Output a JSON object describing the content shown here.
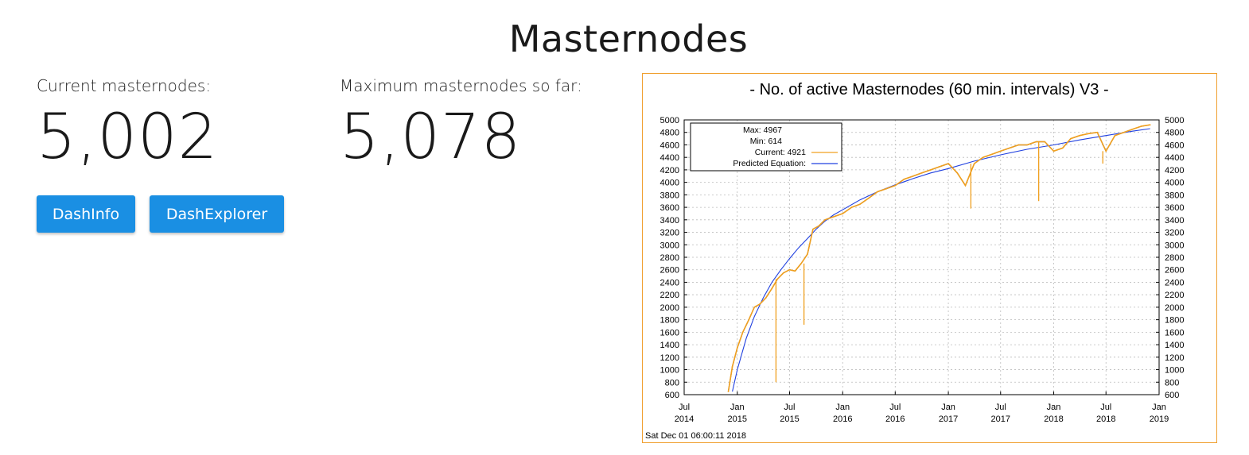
{
  "page": {
    "title": "Masternodes"
  },
  "stats": {
    "current": {
      "label": "Current masternodes:",
      "value": "5,002"
    },
    "maximum": {
      "label": "Maximum masternodes so far:",
      "value": "5,078"
    }
  },
  "buttons": {
    "dashinfo": "DashInfo",
    "dashexplorer": "DashExplorer"
  },
  "colors": {
    "accent": "#1a8fe3",
    "frame": "#f0a030",
    "actual": "#f0a020",
    "predicted": "#2040e0",
    "gap_line": "#000000"
  },
  "chart_data": {
    "type": "line",
    "title": "- No. of active Masternodes (60 min. intervals) V3 -",
    "timestamp": "Sat Dec 01 06:00:11 2018",
    "ylim": [
      600,
      5000
    ],
    "y_ticks": [
      600,
      800,
      1000,
      1200,
      1400,
      1600,
      1800,
      2000,
      2200,
      2400,
      2600,
      2800,
      3000,
      3200,
      3400,
      3600,
      3800,
      4000,
      4200,
      4400,
      4600,
      4800,
      5000
    ],
    "x_ticks": [
      {
        "top": "Jul",
        "bottom": "2014"
      },
      {
        "top": "Jan",
        "bottom": "2015"
      },
      {
        "top": "Jul",
        "bottom": "2015"
      },
      {
        "top": "Jan",
        "bottom": "2016"
      },
      {
        "top": "Jul",
        "bottom": "2016"
      },
      {
        "top": "Jan",
        "bottom": "2017"
      },
      {
        "top": "Jul",
        "bottom": "2017"
      },
      {
        "top": "Jan",
        "bottom": "2018"
      },
      {
        "top": "Jul",
        "bottom": "2018"
      },
      {
        "top": "Jan",
        "bottom": "2019"
      }
    ],
    "grid": true,
    "legend_placement": "top-left",
    "legend": [
      {
        "label": "Max: 4967"
      },
      {
        "label": "Min: 614"
      },
      {
        "label": "Current: 4921",
        "color": "#f0a020"
      },
      {
        "label": "Predicted Equation:",
        "color": "#2040e0"
      }
    ],
    "series": [
      {
        "x": [
          "2014-12-01",
          "2014-12-15",
          "2015-01-01",
          "2015-01-20",
          "2015-02-10",
          "2015-03-01",
          "2015-03-20",
          "2015-04-10",
          "2015-05-01",
          "2015-05-20",
          "2015-06-10",
          "2015-07-01",
          "2015-07-20",
          "2015-08-10",
          "2015-09-01",
          "2015-09-20",
          "2015-10-10",
          "2015-11-01",
          "2015-12-01",
          "2016-01-01",
          "2016-02-01",
          "2016-03-01",
          "2016-04-01",
          "2016-05-01",
          "2016-06-01",
          "2016-07-01",
          "2016-08-01",
          "2016-09-01",
          "2016-10-01",
          "2016-11-01",
          "2016-12-01",
          "2017-01-01",
          "2017-02-01",
          "2017-03-01",
          "2017-04-01",
          "2017-05-01",
          "2017-06-01",
          "2017-07-01",
          "2017-08-01",
          "2017-09-01",
          "2017-10-01",
          "2017-11-01",
          "2017-12-01",
          "2018-01-01",
          "2018-02-01",
          "2018-03-01",
          "2018-04-01",
          "2018-05-01",
          "2018-06-01",
          "2018-07-01",
          "2018-08-01",
          "2018-09-01",
          "2018-10-01",
          "2018-11-01",
          "2018-12-01"
        ],
        "y": [
          650,
          1050,
          1350,
          1600,
          1800,
          2000,
          2050,
          2150,
          2300,
          2450,
          2550,
          2600,
          2580,
          2700,
          2850,
          3250,
          3300,
          3400,
          3450,
          3500,
          3600,
          3650,
          3750,
          3850,
          3900,
          3950,
          4050,
          4100,
          4150,
          4200,
          4250,
          4300,
          4150,
          3950,
          4300,
          4400,
          4450,
          4500,
          4550,
          4600,
          4600,
          4650,
          4650,
          4500,
          4550,
          4700,
          4750,
          4780,
          4800,
          4500,
          4750,
          4800,
          4850,
          4900,
          4921
        ]
      },
      {
        "x": [
          "2014-12-15",
          "2015-01-01",
          "2015-02-01",
          "2015-03-01",
          "2015-04-01",
          "2015-05-01",
          "2015-06-01",
          "2015-07-01",
          "2015-08-01",
          "2015-09-01",
          "2015-10-01",
          "2015-11-01",
          "2015-12-01",
          "2016-01-01",
          "2016-03-01",
          "2016-05-01",
          "2016-07-01",
          "2016-09-01",
          "2016-11-01",
          "2017-01-01",
          "2017-04-01",
          "2017-07-01",
          "2017-10-01",
          "2018-01-01",
          "2018-04-01",
          "2018-07-01",
          "2018-10-01",
          "2018-12-01"
        ],
        "y": [
          650,
          1000,
          1500,
          1850,
          2150,
          2400,
          2600,
          2780,
          2950,
          3100,
          3250,
          3380,
          3480,
          3560,
          3720,
          3850,
          3960,
          4060,
          4150,
          4220,
          4340,
          4440,
          4530,
          4600,
          4680,
          4750,
          4820,
          4860
        ]
      }
    ],
    "spikes": [
      {
        "x": "2015-05-15",
        "y": 800
      },
      {
        "x": "2015-08-20",
        "y": 1720
      },
      {
        "x": "2017-03-20",
        "y": 3580
      },
      {
        "x": "2017-11-10",
        "y": 3700
      },
      {
        "x": "2018-06-20",
        "y": 4300
      }
    ]
  }
}
